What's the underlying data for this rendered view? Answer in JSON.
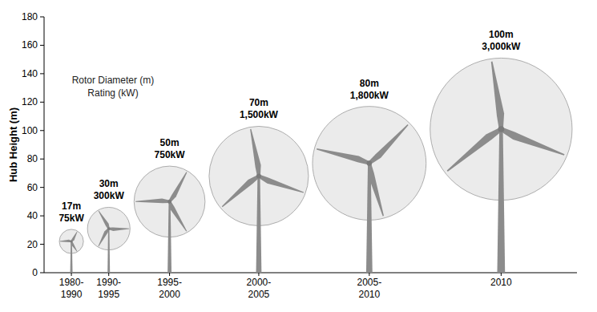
{
  "chart_data": {
    "type": "bubble",
    "y_label": "Hub Height (m)",
    "size_label": "Rotor Diameter (m)",
    "rating_label": "Rating (kW)",
    "categories": [
      "1980-1990",
      "1990-1995",
      "1995-2000",
      "2000-2005",
      "2005-2010",
      "2010"
    ],
    "values": [
      22,
      31,
      50,
      68,
      77,
      101
    ],
    "sizes": [
      17,
      30,
      50,
      70,
      80,
      100
    ],
    "size_labels": [
      "17m",
      "30m",
      "50m",
      "70m",
      "80m",
      "100m"
    ],
    "ratings": [
      75,
      300,
      750,
      1500,
      1800,
      3000
    ],
    "rating_labels": [
      "75kW",
      "300kW",
      "750kW",
      "1,500kW",
      "1,800kW",
      "3,000kW"
    ],
    "color": "#ebebeb",
    "ylim": [
      0,
      180
    ],
    "yticks": [
      0,
      20,
      40,
      60,
      80,
      100,
      120,
      140,
      160,
      180
    ],
    "grid": false
  }
}
